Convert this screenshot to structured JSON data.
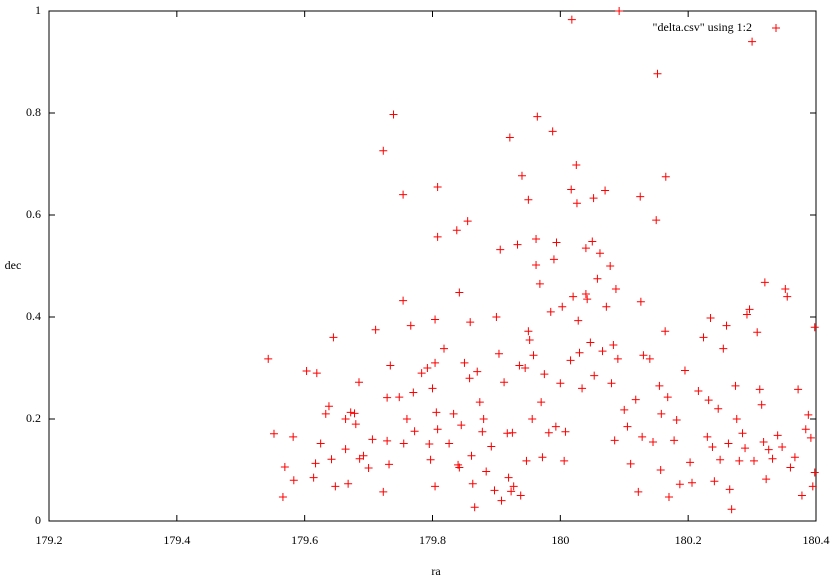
{
  "chart_data": {
    "type": "scatter",
    "xlabel": "ra",
    "ylabel": "dec",
    "xlim": [
      179.2,
      180.4
    ],
    "ylim": [
      0,
      1
    ],
    "xticks": [
      179.2,
      179.4,
      179.6,
      179.8,
      180,
      180.2,
      180.4
    ],
    "yticks": [
      0,
      0.2,
      0.4,
      0.6,
      0.8,
      1
    ],
    "legend": "top-right",
    "series": [
      {
        "name": "\"delta.csv\" using 1:2",
        "color": "#ff0000",
        "x": [
          179.543,
          179.552,
          179.569,
          179.566,
          179.582,
          179.583,
          179.603,
          179.619,
          179.617,
          179.614,
          179.625,
          179.633,
          179.638,
          179.645,
          179.642,
          179.648,
          179.664,
          179.672,
          179.678,
          179.685,
          179.68,
          179.686,
          179.692,
          179.664,
          179.668,
          179.706,
          179.7,
          179.711,
          179.723,
          179.739,
          179.729,
          179.734,
          179.732,
          179.729,
          179.723,
          179.748,
          179.754,
          179.754,
          179.755,
          179.76,
          179.766,
          179.77,
          179.772,
          179.783,
          179.792,
          179.795,
          179.797,
          179.8,
          179.804,
          179.808,
          179.808,
          179.804,
          179.806,
          179.808,
          179.804,
          179.818,
          179.826,
          179.833,
          179.838,
          179.842,
          179.84,
          179.842,
          179.845,
          179.85,
          179.855,
          179.859,
          179.858,
          179.861,
          179.863,
          179.866,
          179.87,
          179.874,
          179.878,
          179.88,
          179.884,
          179.892,
          179.897,
          179.9,
          179.904,
          179.906,
          179.908,
          179.912,
          179.917,
          179.919,
          179.921,
          179.923,
          179.925,
          179.927,
          179.933,
          179.936,
          179.94,
          179.938,
          179.945,
          179.947,
          179.95,
          179.95,
          179.952,
          179.956,
          179.958,
          179.962,
          179.962,
          179.964,
          179.968,
          179.97,
          179.972,
          179.975,
          179.982,
          179.985,
          179.988,
          179.99,
          179.994,
          179.993,
          180.0,
          180.003,
          180.008,
          180.006,
          180.018,
          180.017,
          180.02,
          180.016,
          180.025,
          180.026,
          180.028,
          180.03,
          180.034,
          180.04,
          180.04,
          180.042,
          180.047,
          180.05,
          180.052,
          180.053,
          180.058,
          180.062,
          180.066,
          180.07,
          180.072,
          180.078,
          180.08,
          180.083,
          180.087,
          180.092,
          180.09,
          180.085,
          180.1,
          180.105,
          180.11,
          180.118,
          180.125,
          180.126,
          180.13,
          180.128,
          180.122,
          180.14,
          180.145,
          180.15,
          180.152,
          180.155,
          180.158,
          180.157,
          180.165,
          180.164,
          180.168,
          180.17,
          180.178,
          180.182,
          180.187,
          180.195,
          180.203,
          180.206,
          180.216,
          180.224,
          180.23,
          180.232,
          180.235,
          180.238,
          180.241,
          180.247,
          180.25,
          180.255,
          180.26,
          180.263,
          180.265,
          180.268,
          180.274,
          180.276,
          180.28,
          180.285,
          180.289,
          180.292,
          180.296,
          180.3,
          180.303,
          180.308,
          180.312,
          180.315,
          180.318,
          180.32,
          180.322,
          180.326,
          180.332,
          180.34,
          180.347,
          180.352,
          180.355,
          180.36,
          180.367,
          180.372,
          180.378,
          180.384,
          180.388,
          180.392,
          180.395,
          180.398,
          180.398
        ],
        "values": [
          0.318,
          0.171,
          0.106,
          0.047,
          0.165,
          0.08,
          0.294,
          0.29,
          0.113,
          0.085,
          0.152,
          0.21,
          0.225,
          0.36,
          0.121,
          0.068,
          0.141,
          0.213,
          0.211,
          0.272,
          0.19,
          0.122,
          0.128,
          0.2,
          0.073,
          0.16,
          0.104,
          0.375,
          0.726,
          0.797,
          0.242,
          0.305,
          0.111,
          0.157,
          0.057,
          0.243,
          0.64,
          0.432,
          0.152,
          0.2,
          0.383,
          0.252,
          0.176,
          0.29,
          0.3,
          0.151,
          0.12,
          0.26,
          0.31,
          0.655,
          0.557,
          0.395,
          0.213,
          0.18,
          0.068,
          0.338,
          0.152,
          0.21,
          0.57,
          0.448,
          0.11,
          0.105,
          0.188,
          0.31,
          0.588,
          0.39,
          0.28,
          0.128,
          0.073,
          0.027,
          0.293,
          0.233,
          0.175,
          0.2,
          0.097,
          0.146,
          0.06,
          0.4,
          0.328,
          0.532,
          0.04,
          0.272,
          0.172,
          0.085,
          0.752,
          0.058,
          0.173,
          0.068,
          0.542,
          0.305,
          0.677,
          0.05,
          0.3,
          0.118,
          0.63,
          0.372,
          0.355,
          0.2,
          0.325,
          0.553,
          0.502,
          0.793,
          0.465,
          0.233,
          0.125,
          0.288,
          0.173,
          0.41,
          0.764,
          0.513,
          0.546,
          0.185,
          0.27,
          0.42,
          0.175,
          0.118,
          0.983,
          0.65,
          0.44,
          0.315,
          0.698,
          0.623,
          0.393,
          0.33,
          0.26,
          0.535,
          0.445,
          0.435,
          0.35,
          0.548,
          0.633,
          0.285,
          0.475,
          0.525,
          0.333,
          0.648,
          0.42,
          0.5,
          0.27,
          0.345,
          0.455,
          1.0,
          0.318,
          0.158,
          0.218,
          0.185,
          0.112,
          0.238,
          0.636,
          0.43,
          0.325,
          0.165,
          0.057,
          0.318,
          0.155,
          0.59,
          0.877,
          0.265,
          0.21,
          0.1,
          0.675,
          0.372,
          0.243,
          0.047,
          0.158,
          0.198,
          0.072,
          0.295,
          0.115,
          0.075,
          0.255,
          0.36,
          0.165,
          0.237,
          0.398,
          0.145,
          0.078,
          0.22,
          0.12,
          0.338,
          0.383,
          0.152,
          0.062,
          0.023,
          0.265,
          0.2,
          0.118,
          0.172,
          0.143,
          0.405,
          0.415,
          0.94,
          0.118,
          0.37,
          0.258,
          0.228,
          0.155,
          0.468,
          0.082,
          0.14,
          0.122,
          0.168,
          0.145,
          0.455,
          0.44,
          0.105,
          0.125,
          0.258,
          0.05,
          0.18,
          0.208,
          0.163,
          0.068,
          0.38,
          0.095
        ]
      }
    ]
  }
}
